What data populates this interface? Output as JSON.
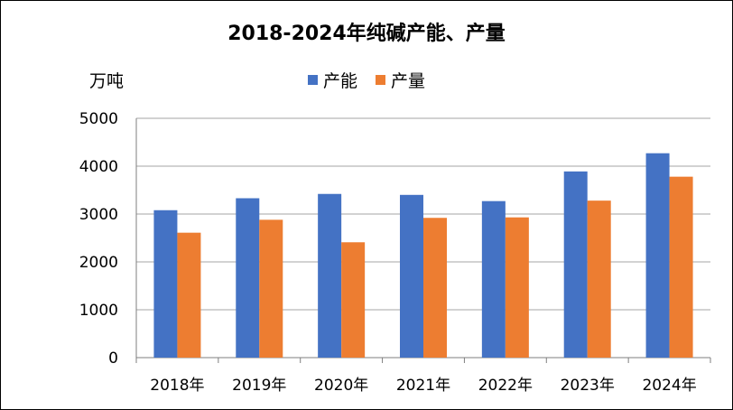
{
  "chart_data": {
    "type": "bar",
    "title": "2018-2024年纯碱产能、产量",
    "ylabel": "万吨",
    "categories": [
      "2018年",
      "2019年",
      "2020年",
      "2021年",
      "2022年",
      "2023年",
      "2024年"
    ],
    "series": [
      {
        "name": "产能",
        "color": "#4472C4",
        "values": [
          3080,
          3330,
          3420,
          3400,
          3270,
          3890,
          4270
        ]
      },
      {
        "name": "产量",
        "color": "#ED7D31",
        "values": [
          2610,
          2880,
          2410,
          2920,
          2930,
          3280,
          3780
        ]
      }
    ],
    "ylim": [
      0,
      5000
    ],
    "yticks": [
      0,
      1000,
      2000,
      3000,
      4000,
      5000
    ],
    "grid": true,
    "legend_position": "top-center"
  }
}
